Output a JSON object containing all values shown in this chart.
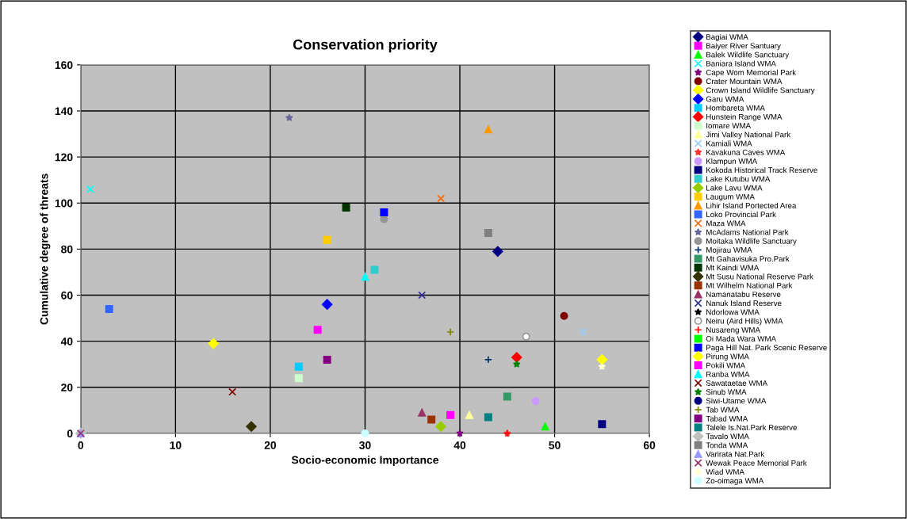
{
  "chart_data": {
    "type": "scatter",
    "title": "Conservation priority",
    "xlabel": "Socio-economic Importance",
    "ylabel": "Cumulative degree of threats",
    "xlim": [
      0,
      60
    ],
    "ylim": [
      0,
      160
    ],
    "xticks": [
      0,
      10,
      20,
      30,
      40,
      50,
      60
    ],
    "yticks": [
      0,
      20,
      40,
      60,
      80,
      100,
      120,
      140,
      160
    ],
    "grid": true,
    "legend": "right",
    "series": [
      {
        "name": "Bagiai WMA",
        "color": "#000080",
        "marker": "diamond",
        "x": [
          44
        ],
        "values": [
          79
        ]
      },
      {
        "name": "Baiyer River Santuary",
        "color": "#ff00ff",
        "marker": "square",
        "x": [
          25
        ],
        "values": [
          45
        ]
      },
      {
        "name": "Balek Wildlife Sanctuary",
        "color": "#00ff00",
        "marker": "triangle",
        "x": [
          49
        ],
        "values": [
          3
        ]
      },
      {
        "name": "Baniara Island WMA",
        "color": "#00ffff",
        "marker": "cross",
        "x": [
          1
        ],
        "values": [
          106
        ]
      },
      {
        "name": "Cape Wom Memorial Park",
        "color": "#800080",
        "marker": "star",
        "x": [
          40
        ],
        "values": [
          0
        ]
      },
      {
        "name": "Crater Mountain WMA",
        "color": "#800000",
        "marker": "circle",
        "x": [
          51
        ],
        "values": [
          51
        ]
      },
      {
        "name": "Crown Island Wildlife Sanctuary",
        "color": "#ffff00",
        "marker": "diamond",
        "x": [
          14
        ],
        "values": [
          39
        ]
      },
      {
        "name": "Garu WMA",
        "color": "#0000ff",
        "marker": "diamond",
        "x": [
          26
        ],
        "values": [
          56
        ]
      },
      {
        "name": "Hombareta WMA",
        "color": "#00ccff",
        "marker": "square",
        "x": [
          23
        ],
        "values": [
          29
        ]
      },
      {
        "name": "Hunstein Range WMA",
        "color": "#ff0000",
        "marker": "diamond",
        "x": [
          46
        ],
        "values": [
          33
        ]
      },
      {
        "name": "Iomare WMA",
        "color": "#ccffcc",
        "marker": "square",
        "x": [
          23
        ],
        "values": [
          24
        ]
      },
      {
        "name": "Jimi Valley National Park",
        "color": "#ffff99",
        "marker": "triangle",
        "x": [
          41
        ],
        "values": [
          8
        ]
      },
      {
        "name": "Kamiali WMA",
        "color": "#99ccff",
        "marker": "cross",
        "x": [
          53
        ],
        "values": [
          44
        ]
      },
      {
        "name": "Kavakuna Caves WMA",
        "color": "#ff3333",
        "marker": "star",
        "x": [
          45
        ],
        "values": [
          0
        ]
      },
      {
        "name": "Klampun WMA",
        "color": "#cc99ff",
        "marker": "circle",
        "x": [
          48
        ],
        "values": [
          14
        ]
      },
      {
        "name": "Kokoda Historical Track Reserve",
        "color": "#000080",
        "marker": "square",
        "x": [
          55
        ],
        "values": [
          4
        ]
      },
      {
        "name": "Lake Kutubu WMA",
        "color": "#33cccc",
        "marker": "square",
        "x": [
          31
        ],
        "values": [
          71
        ]
      },
      {
        "name": "Lake Lavu WMA",
        "color": "#99cc00",
        "marker": "diamond",
        "x": [
          38
        ],
        "values": [
          3
        ]
      },
      {
        "name": "Laugum WMA",
        "color": "#ffcc00",
        "marker": "square",
        "x": [
          26
        ],
        "values": [
          84
        ]
      },
      {
        "name": "Lihir Island Portected Area",
        "color": "#ff9900",
        "marker": "triangle",
        "x": [
          43
        ],
        "values": [
          132
        ]
      },
      {
        "name": "Loko Provincial Park",
        "color": "#3366ff",
        "marker": "square",
        "x": [
          3
        ],
        "values": [
          54
        ]
      },
      {
        "name": "Maza WMA",
        "color": "#ff6600",
        "marker": "cross",
        "x": [
          38
        ],
        "values": [
          102
        ]
      },
      {
        "name": "McAdams National Park",
        "color": "#666699",
        "marker": "star",
        "x": [
          22
        ],
        "values": [
          137
        ]
      },
      {
        "name": "Moitaka Wildlife Sanctuary",
        "color": "#969696",
        "marker": "circle",
        "x": [
          32
        ],
        "values": [
          93
        ]
      },
      {
        "name": "Mojirau WMA",
        "color": "#003366",
        "marker": "plus",
        "x": [
          43
        ],
        "values": [
          32
        ]
      },
      {
        "name": "Mt Gahavisuka Pro.Park",
        "color": "#339966",
        "marker": "square",
        "x": [
          45
        ],
        "values": [
          16
        ]
      },
      {
        "name": "Mt Kaindi WMA",
        "color": "#003300",
        "marker": "square",
        "x": [
          28
        ],
        "values": [
          98
        ]
      },
      {
        "name": "Mt Susu National Reserve Park",
        "color": "#333300",
        "marker": "diamond",
        "x": [
          18
        ],
        "values": [
          3
        ]
      },
      {
        "name": "Mt Wilhelm National Park",
        "color": "#993300",
        "marker": "square",
        "x": [
          37
        ],
        "values": [
          6
        ]
      },
      {
        "name": "Namanatabu Reserve",
        "color": "#993366",
        "marker": "triangle",
        "x": [
          36
        ],
        "values": [
          9
        ]
      },
      {
        "name": "Nanuk Island Reserve",
        "color": "#333399",
        "marker": "cross",
        "x": [
          36
        ],
        "values": [
          60
        ]
      },
      {
        "name": "Ndorlowa WMA",
        "color": "#000000",
        "marker": "star",
        "x": [
          null
        ],
        "values": [
          null
        ]
      },
      {
        "name": "Neiru (Aird Hills) WMA",
        "color": "#ffffff",
        "marker": "circle",
        "x": [
          47
        ],
        "values": [
          42
        ]
      },
      {
        "name": "Nusareng WMA",
        "color": "#ff0000",
        "marker": "plus",
        "x": [
          45
        ],
        "values": [
          0
        ]
      },
      {
        "name": "Oi Mada Wara WMA",
        "color": "#00ff00",
        "marker": "square",
        "x": [
          null
        ],
        "values": [
          null
        ]
      },
      {
        "name": "Paga Hill Nat. Park Scenic Reserve",
        "color": "#0000ff",
        "marker": "square",
        "x": [
          32
        ],
        "values": [
          96
        ]
      },
      {
        "name": "Pirung WMA",
        "color": "#ffff00",
        "marker": "diamond",
        "x": [
          55
        ],
        "values": [
          32
        ]
      },
      {
        "name": "Pokili WMA",
        "color": "#ff00ff",
        "marker": "square",
        "x": [
          39
        ],
        "values": [
          8
        ]
      },
      {
        "name": "Ranba WMA",
        "color": "#00ffff",
        "marker": "triangle",
        "x": [
          30
        ],
        "values": [
          68
        ]
      },
      {
        "name": "Sawataetae WMA",
        "color": "#800000",
        "marker": "cross",
        "x": [
          16
        ],
        "values": [
          18
        ]
      },
      {
        "name": "Sinub WMA",
        "color": "#008000",
        "marker": "star",
        "x": [
          46
        ],
        "values": [
          30
        ]
      },
      {
        "name": "Siwi-Utame WMA",
        "color": "#000080",
        "marker": "circle",
        "x": [
          null
        ],
        "values": [
          null
        ]
      },
      {
        "name": "Tab WMA",
        "color": "#808000",
        "marker": "plus",
        "x": [
          39
        ],
        "values": [
          44
        ]
      },
      {
        "name": "Tabad WMA",
        "color": "#800080",
        "marker": "square",
        "x": [
          26
        ],
        "values": [
          32
        ]
      },
      {
        "name": "Talele Is.Nat.Park Reserve",
        "color": "#008080",
        "marker": "square",
        "x": [
          43
        ],
        "values": [
          7
        ]
      },
      {
        "name": "Tavalo WMA",
        "color": "#c0c0c0",
        "marker": "diamond",
        "x": [
          0
        ],
        "values": [
          0
        ]
      },
      {
        "name": "Tonda WMA",
        "color": "#808080",
        "marker": "square",
        "x": [
          43
        ],
        "values": [
          87
        ]
      },
      {
        "name": "Varirata Nat.Park",
        "color": "#9999ff",
        "marker": "triangle",
        "x": [
          0
        ],
        "values": [
          0
        ]
      },
      {
        "name": "Wewak Peace Memorial Park",
        "color": "#993366",
        "marker": "cross",
        "x": [
          0
        ],
        "values": [
          0
        ]
      },
      {
        "name": "Wiad WMA",
        "color": "#ffffcc",
        "marker": "star",
        "x": [
          55
        ],
        "values": [
          29
        ]
      },
      {
        "name": "Zo-oimaga WMA",
        "color": "#ccffff",
        "marker": "circle",
        "x": [
          30
        ],
        "values": [
          0
        ]
      }
    ]
  }
}
